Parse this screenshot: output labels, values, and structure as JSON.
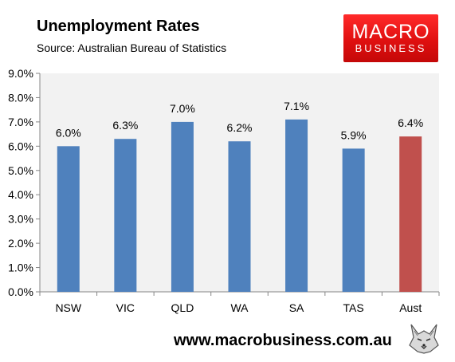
{
  "title": "Unemployment Rates",
  "subtitle": "Source: Australian Bureau of Statistics",
  "logo": {
    "line1": "MACRO",
    "line2": "BUSINESS"
  },
  "footer_url": "www.macrobusiness.com.au",
  "chart_data": {
    "type": "bar",
    "categories": [
      "NSW",
      "VIC",
      "QLD",
      "WA",
      "SA",
      "TAS",
      "Aust"
    ],
    "values": [
      6.0,
      6.3,
      7.0,
      6.2,
      7.1,
      5.9,
      6.4
    ],
    "data_labels": [
      "6.0%",
      "6.3%",
      "7.0%",
      "6.2%",
      "7.1%",
      "5.9%",
      "6.4%"
    ],
    "yticks": [
      "0.0%",
      "1.0%",
      "2.0%",
      "3.0%",
      "4.0%",
      "5.0%",
      "6.0%",
      "7.0%",
      "8.0%",
      "9.0%"
    ],
    "ylim": [
      0,
      9
    ],
    "grid": false,
    "legend": "none",
    "colors": {
      "bar": "#4f81bd",
      "highlight": "#c0504d",
      "plot_bg": "#f2f2f2",
      "axis": "#868686"
    },
    "highlight_category": "Aust"
  }
}
